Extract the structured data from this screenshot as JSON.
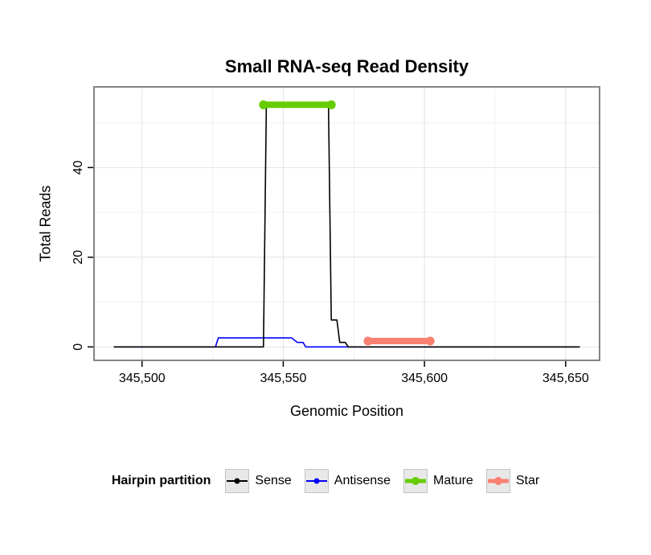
{
  "chart_data": {
    "type": "line",
    "title": "Small RNA-seq Read Density",
    "xlabel": "Genomic Position",
    "ylabel": "Total Reads",
    "xlim": [
      345483,
      345662
    ],
    "ylim": [
      -3,
      58
    ],
    "grid": true,
    "legend_position": "bottom",
    "x_ticks": [
      {
        "value": 345500,
        "label": "345,500"
      },
      {
        "value": 345550,
        "label": "345,550"
      },
      {
        "value": 345600,
        "label": "345,600"
      },
      {
        "value": 345650,
        "label": "345,650"
      }
    ],
    "y_ticks": [
      {
        "value": 0,
        "label": "0"
      },
      {
        "value": 20,
        "label": "20"
      },
      {
        "value": 40,
        "label": "40"
      }
    ],
    "x_minor": [
      345525,
      345575,
      345625
    ],
    "y_minor": [
      10,
      30,
      50
    ],
    "series": [
      {
        "name": "Antisense",
        "color": "#0000FF",
        "width": 1.6,
        "point_ends": false,
        "points": [
          [
            345490,
            0
          ],
          [
            345526,
            0
          ],
          [
            345527,
            2
          ],
          [
            345553,
            2
          ],
          [
            345555,
            1
          ],
          [
            345557,
            1
          ],
          [
            345558,
            0
          ],
          [
            345655,
            0
          ]
        ]
      },
      {
        "name": "Sense",
        "color": "#000000",
        "width": 1.6,
        "point_ends": false,
        "points": [
          [
            345490,
            0
          ],
          [
            345543,
            0
          ],
          [
            345544,
            54
          ],
          [
            345566,
            54
          ],
          [
            345567,
            6
          ],
          [
            345569,
            6
          ],
          [
            345570,
            1
          ],
          [
            345572,
            1
          ],
          [
            345573,
            0
          ],
          [
            345655,
            0
          ]
        ]
      },
      {
        "name": "Mature",
        "color": "#66CC00",
        "width": 8,
        "point_ends": true,
        "point_radius": 5.5,
        "points": [
          [
            345543,
            54
          ],
          [
            345567,
            54
          ]
        ]
      },
      {
        "name": "Star",
        "color": "#FA8072",
        "width": 8,
        "point_ends": true,
        "point_radius": 5.5,
        "points": [
          [
            345580,
            1.3
          ],
          [
            345602,
            1.3
          ]
        ]
      }
    ],
    "style": {
      "panel_border": "#848484",
      "grid_major": "#E2E2E2",
      "grid_minor": "#F0F0F0",
      "tick_color": "#000000"
    }
  },
  "legend": {
    "title": "Hairpin partition",
    "items": [
      {
        "label": "Sense",
        "color": "#000000",
        "key_line_width": 2,
        "key_dot_radius": 3.5
      },
      {
        "label": "Antisense",
        "color": "#0000FF",
        "key_line_width": 2,
        "key_dot_radius": 3.5
      },
      {
        "label": "Mature",
        "color": "#66CC00",
        "key_line_width": 5,
        "key_dot_radius": 5
      },
      {
        "label": "Star",
        "color": "#FA8072",
        "key_line_width": 5,
        "key_dot_radius": 5
      }
    ],
    "key_box_fill": "#E8E8E8",
    "key_box_border": "#C3C3C3"
  }
}
